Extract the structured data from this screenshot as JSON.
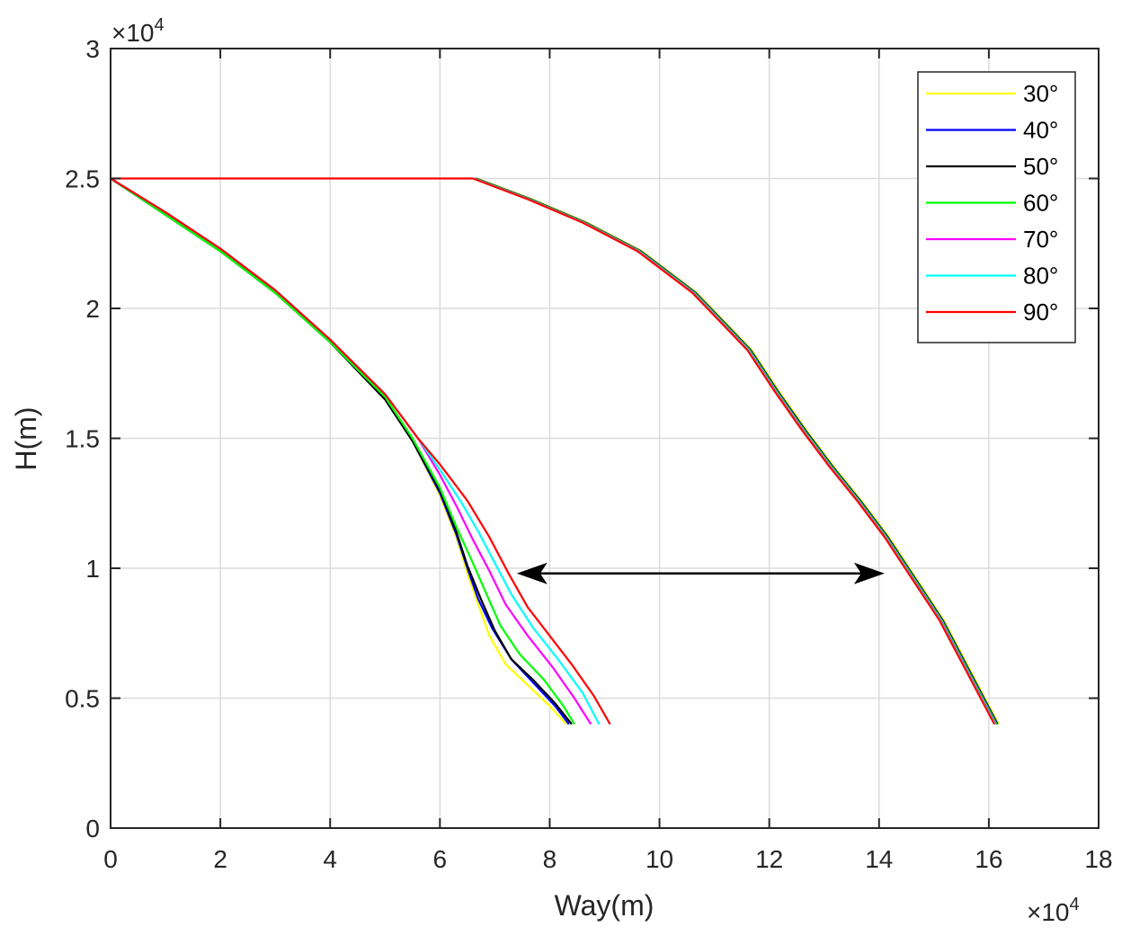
{
  "chart_data": {
    "type": "line",
    "xlabel": "Way(m)",
    "ylabel": "H(m)",
    "x_exponent_label": "×10",
    "y_exponent_label": "×10",
    "exponent_power": "4",
    "xlim": [
      0,
      18
    ],
    "ylim": [
      0,
      3
    ],
    "x_scale_factor": 10000,
    "y_scale_factor": 10000,
    "xticks": [
      0,
      2,
      4,
      6,
      8,
      10,
      12,
      14,
      16,
      18
    ],
    "xtick_labels": [
      "0",
      "2",
      "4",
      "6",
      "8",
      "10",
      "12",
      "14",
      "16",
      "18"
    ],
    "yticks": [
      0,
      0.5,
      1,
      1.5,
      2,
      2.5,
      3
    ],
    "ytick_labels": [
      "0",
      "0.5",
      "1",
      "1.5",
      "2",
      "2.5",
      "3"
    ],
    "grid": true,
    "legend_position": "top-right",
    "series": [
      {
        "name": "30°",
        "color": "#ffff00",
        "x": [
          0,
          1,
          2,
          3,
          4,
          5,
          5.5,
          6,
          6.3,
          6.5,
          6.7,
          6.9,
          7.2,
          7.6,
          8,
          8.3
        ],
        "y": [
          2.5,
          2.36,
          2.22,
          2.06,
          1.87,
          1.65,
          1.49,
          1.28,
          1.12,
          0.98,
          0.86,
          0.74,
          0.63,
          0.55,
          0.47,
          0.4
        ]
      },
      {
        "name": "40°",
        "color": "#0000ff",
        "x": [
          0,
          1,
          2,
          3,
          4,
          5,
          5.5,
          6,
          6.3,
          6.5,
          6.7,
          6.95,
          7.3,
          7.7,
          8.1,
          8.35
        ],
        "y": [
          2.5,
          2.36,
          2.22,
          2.06,
          1.87,
          1.65,
          1.49,
          1.29,
          1.13,
          1.0,
          0.88,
          0.77,
          0.65,
          0.56,
          0.47,
          0.4
        ]
      },
      {
        "name": "50°",
        "color": "#000000",
        "x": [
          0,
          1,
          2,
          3,
          4,
          5,
          5.5,
          6,
          6.3,
          6.5,
          6.75,
          7.0,
          7.3,
          7.7,
          8.1,
          8.4
        ],
        "y": [
          2.5,
          2.36,
          2.22,
          2.06,
          1.87,
          1.65,
          1.49,
          1.3,
          1.14,
          1.01,
          0.88,
          0.76,
          0.65,
          0.57,
          0.48,
          0.4
        ]
      },
      {
        "name": "60°",
        "color": "#00ff00",
        "x": [
          0,
          1,
          2,
          3,
          4,
          5,
          5.5,
          6,
          6.3,
          6.6,
          6.85,
          7.1,
          7.45,
          7.9,
          8.25,
          8.45
        ],
        "y": [
          2.5,
          2.36,
          2.22,
          2.06,
          1.87,
          1.66,
          1.5,
          1.31,
          1.16,
          1.02,
          0.9,
          0.78,
          0.67,
          0.57,
          0.47,
          0.4
        ]
      },
      {
        "name": "70°",
        "color": "#ff00ff",
        "x": [
          0,
          1,
          2,
          3,
          4,
          5,
          5.6,
          6,
          6.3,
          6.6,
          6.9,
          7.2,
          7.6,
          8.05,
          8.45,
          8.75
        ],
        "y": [
          2.5,
          2.37,
          2.23,
          2.07,
          1.88,
          1.67,
          1.5,
          1.36,
          1.24,
          1.11,
          0.99,
          0.86,
          0.74,
          0.62,
          0.5,
          0.4
        ]
      },
      {
        "name": "80°",
        "color": "#00ffff",
        "x": [
          0,
          1,
          2,
          3,
          4,
          5,
          5.6,
          6,
          6.4,
          6.7,
          7.0,
          7.3,
          7.7,
          8.15,
          8.6,
          8.9
        ],
        "y": [
          2.5,
          2.37,
          2.23,
          2.07,
          1.88,
          1.67,
          1.5,
          1.38,
          1.25,
          1.14,
          1.02,
          0.9,
          0.77,
          0.65,
          0.52,
          0.4
        ]
      },
      {
        "name": "90°",
        "color": "#ff0000",
        "x": [
          0,
          1,
          2,
          3,
          4,
          5,
          5.6,
          6,
          6.5,
          6.9,
          7.25,
          7.6,
          8.0,
          8.4,
          8.8,
          9.1
        ],
        "y": [
          2.5,
          2.37,
          2.23,
          2.07,
          1.88,
          1.67,
          1.5,
          1.4,
          1.26,
          1.12,
          0.98,
          0.85,
          0.74,
          0.63,
          0.51,
          0.4
        ]
      }
    ],
    "shifted_curve": {
      "colors": [
        "#ffff00",
        "#0000ff",
        "#000000",
        "#00ff00",
        "#ff00ff",
        "#00ffff",
        "#ff0000"
      ],
      "offsets": [
        0.08,
        0.06,
        0.05,
        0.04,
        0.02,
        0.01,
        0
      ],
      "horizontal_segment": {
        "x": [
          0,
          6.6
        ],
        "y": [
          2.5,
          2.5
        ]
      },
      "x": [
        6.6,
        7.6,
        8.6,
        9.6,
        10.6,
        11.6,
        12.1,
        12.6,
        13.1,
        13.6,
        14.1,
        14.6,
        15.1,
        15.6,
        16.1
      ],
      "y": [
        2.5,
        2.42,
        2.33,
        2.22,
        2.06,
        1.84,
        1.68,
        1.53,
        1.39,
        1.26,
        1.12,
        0.96,
        0.8,
        0.6,
        0.4
      ]
    },
    "annotation_arrow": {
      "x": [
        7.4,
        14.1
      ],
      "y": [
        0.98,
        0.98
      ],
      "style": "double-headed",
      "color": "#000000"
    }
  }
}
